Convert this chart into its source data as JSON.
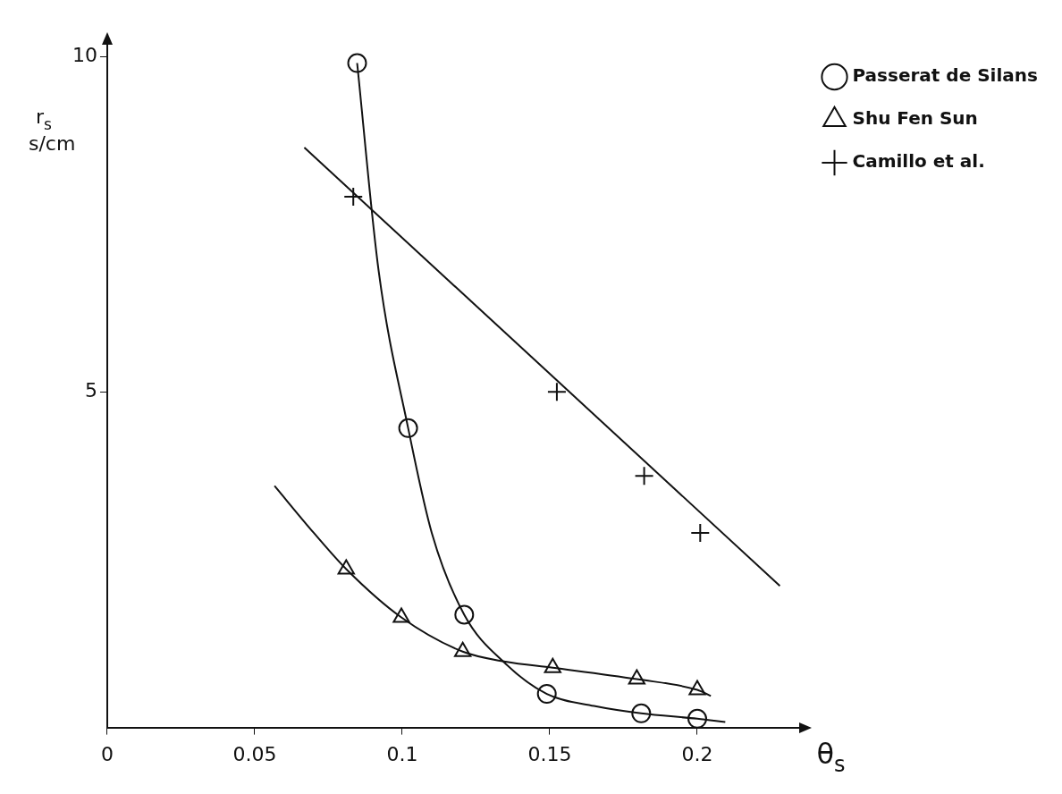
{
  "chart_data": {
    "type": "scatter",
    "xlabel": "θ$_{s}$",
    "ylabel": "r$_{s}$ s/cm",
    "xlim": [
      0,
      0.235
    ],
    "ylim": [
      0,
      10.2
    ],
    "xticks": [
      0,
      0.05,
      0.1,
      0.15,
      0.2
    ],
    "yticks": [
      5,
      10
    ],
    "grid": false,
    "legend": "top right",
    "series": [
      {
        "name": "Passerat de Silans",
        "color": "#111111",
        "marker": "circle",
        "x": [
          0.0847,
          0.102,
          0.121,
          0.149,
          0.181,
          0.2
        ],
        "values": [
          9.9,
          4.46,
          1.68,
          0.5,
          0.21,
          0.13
        ]
      },
      {
        "name": "Shu Fen Sun",
        "color": "#111111",
        "marker": "triangle",
        "x": [
          0.081,
          0.0997,
          0.1205,
          0.151,
          0.1795,
          0.2
        ],
        "values": [
          2.36,
          1.64,
          1.13,
          0.89,
          0.72,
          0.56
        ]
      },
      {
        "name": "Camillo et al.",
        "color": "#111111",
        "marker": "cross",
        "x": [
          0.0834,
          0.1524,
          0.182,
          0.201
        ],
        "values": [
          7.91,
          5.0,
          3.75,
          2.9
        ]
      },
      {
        "type": "line",
        "color": "#111111",
        "marker": "none",
        "x": [
          0.0847,
          0.092,
          0.102,
          0.11,
          0.121,
          0.135,
          0.149,
          0.165,
          0.181,
          0.2,
          0.2095
        ],
        "values": [
          9.9,
          6.8,
          4.46,
          2.9,
          1.68,
          0.95,
          0.5,
          0.32,
          0.21,
          0.13,
          0.08
        ]
      },
      {
        "type": "line",
        "color": "#111111",
        "marker": "none",
        "x": [
          0.0567,
          0.07,
          0.081,
          0.0997,
          0.1205,
          0.135,
          0.151,
          0.1795,
          0.2,
          0.2046
        ],
        "values": [
          3.6,
          2.9,
          2.36,
          1.64,
          1.13,
          0.98,
          0.89,
          0.72,
          0.56,
          0.47
        ]
      },
      {
        "type": "line",
        "color": "#111111",
        "marker": "none",
        "x": [
          0.0668,
          0.228
        ],
        "values": [
          8.64,
          2.11
        ]
      }
    ]
  }
}
